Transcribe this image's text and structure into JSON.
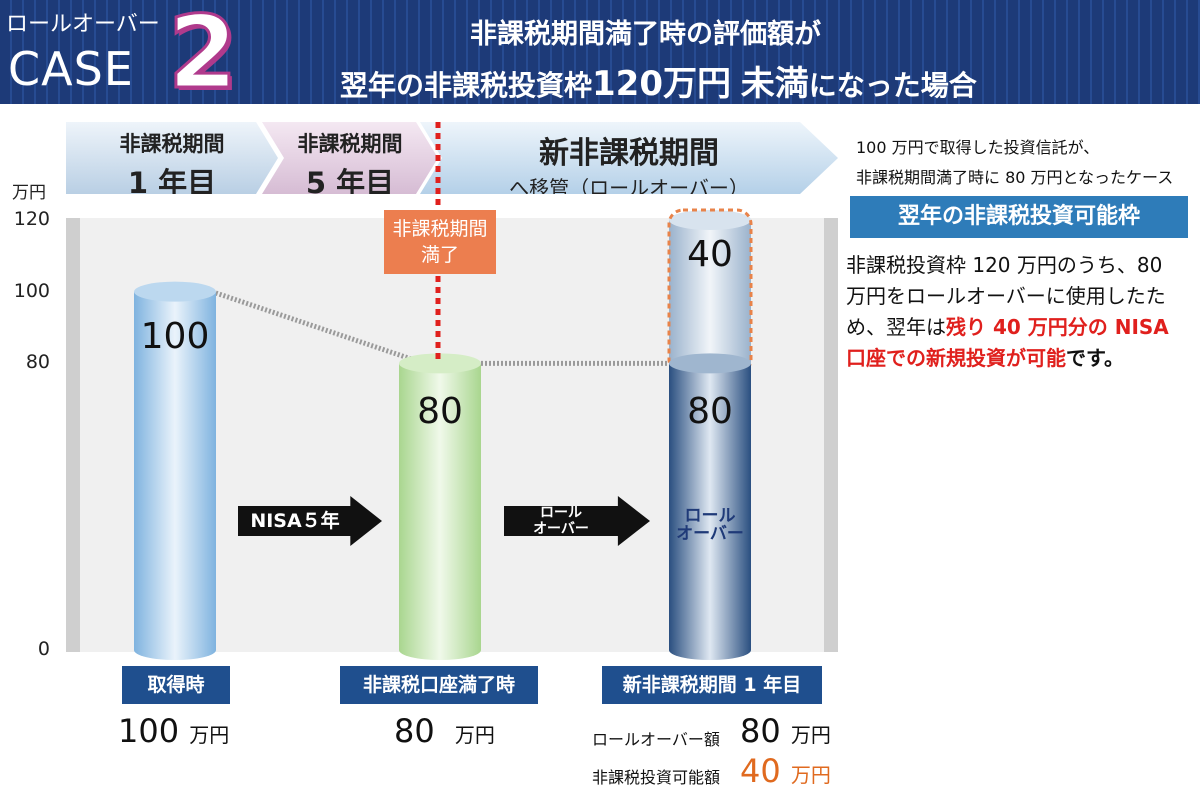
{
  "header": {
    "case_small": "ロールオーバー",
    "case_big": "CASE",
    "case_number": "2",
    "title_line1": "非課税期間満了時の評価額が",
    "title_line2_a": "翌年の非課税投資枠",
    "title_line2_b": "120万円",
    "title_line2_c": "未満",
    "title_line2_d": "になった場合"
  },
  "phases": [
    {
      "line1": "非課税期間",
      "line2": "1 年目"
    },
    {
      "line1": "非課税期間",
      "line2": "5 年目"
    },
    {
      "line1": "新非課税期間",
      "line2": "へ移管（ロールオーバー）"
    }
  ],
  "expiry_label": {
    "line1": "非課税期間",
    "line2": "満了"
  },
  "side": {
    "note_line1": "100 万円で取得した投資信託が、",
    "note_line2": "非課税期間満了時に 80 万円となったケース",
    "header": "翌年の非課税投資可能枠",
    "body_normal": "非課税投資枠 120 万円のうち、80 万円をロールオーバーに使用したため、翌年は",
    "body_red": "残り 40 万円分の NISA 口座での新規投資が可能",
    "body_tail": "です。"
  },
  "arrows": [
    {
      "line1": "NISA５年",
      "line2": ""
    },
    {
      "line1": "ロール",
      "line2": "オーバー"
    }
  ],
  "bottom": {
    "value_unit": "万円",
    "rollover_amount_label": "ロールオーバー額",
    "investable_label": "非課税投資可能額"
  },
  "colors": {
    "header_bg": "#1d3a78",
    "category_bg": "#1f4f8e",
    "expiry_bg": "#ec7e4f",
    "highlight_red": "#e0201d",
    "highlight_orange": "#e06a1f"
  },
  "chart_data": {
    "type": "bar",
    "unit_label": "万円",
    "ylim": [
      0,
      120
    ],
    "yticks": [
      0,
      80,
      100,
      120
    ],
    "categories": [
      "取得時",
      "非課税口座満了時",
      "新非課税期間 1 年目"
    ],
    "series": [
      {
        "values": [
          100,
          80,
          80
        ]
      },
      {
        "values": [
          0,
          0,
          40
        ]
      }
    ],
    "bar_labels": [
      "100",
      "80",
      "80"
    ],
    "stack_label": "40",
    "bar_annotation": {
      "line1": "ロール",
      "line2": "オーバー"
    }
  }
}
